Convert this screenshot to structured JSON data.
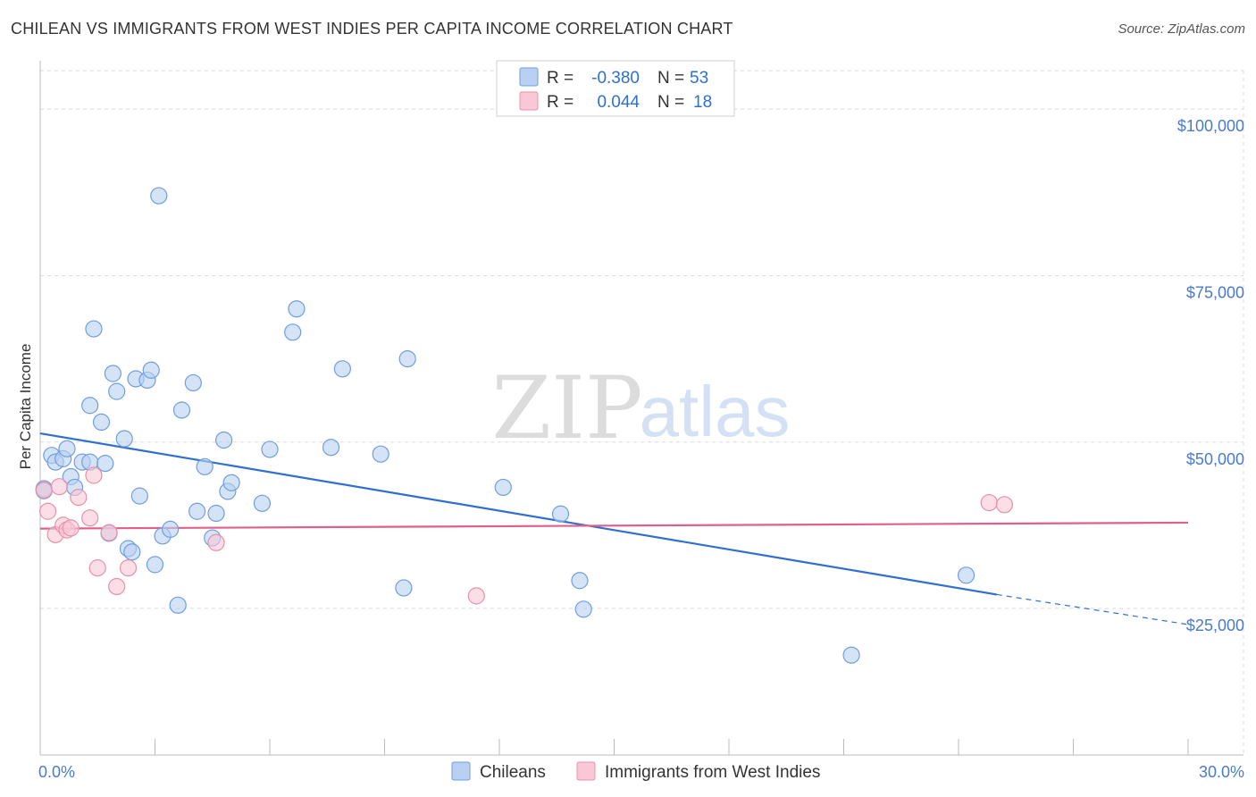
{
  "title": "CHILEAN VS IMMIGRANTS FROM WEST INDIES PER CAPITA INCOME CORRELATION CHART",
  "source": "Source: ZipAtlas.com",
  "watermark": {
    "zip": "ZIP",
    "atlas": "atlas"
  },
  "colors": {
    "blue_fill": "#b9d0f2",
    "blue_stroke": "#6f9ee0",
    "blue_line": "#2f6fd0",
    "pink_fill": "#f8c8d6",
    "pink_stroke": "#e890ab",
    "pink_line": "#e0608a",
    "grid": "#d9d9d9",
    "tick_text": "#4a7bc8"
  },
  "legend": {
    "r_label": "R =",
    "n_label": "N =",
    "rows": [
      {
        "series": "Chileans",
        "r": "-0.380",
        "n": "53"
      },
      {
        "series": "Immigrants from West Indies",
        "r": "0.044",
        "n": "18"
      }
    ]
  },
  "chart_data": {
    "type": "scatter",
    "ylabel": "Per Capita Income",
    "xlim": [
      0,
      30
    ],
    "ylim": [
      3000,
      107000
    ],
    "x_ticks": [
      "0.0%",
      "30.0%"
    ],
    "y_ticks": [
      {
        "value": 25000,
        "label": "$25,000"
      },
      {
        "value": 50000,
        "label": "$50,000"
      },
      {
        "value": 75000,
        "label": "$75,000"
      },
      {
        "value": 100000,
        "label": "$100,000"
      }
    ],
    "series": [
      {
        "name": "Chileans",
        "points": [
          [
            0.1,
            43000
          ],
          [
            0.3,
            48000
          ],
          [
            0.4,
            47000
          ],
          [
            0.6,
            47500
          ],
          [
            0.7,
            49000
          ],
          [
            0.8,
            44800
          ],
          [
            0.9,
            43200
          ],
          [
            1.1,
            47000
          ],
          [
            1.3,
            47000
          ],
          [
            1.3,
            55500
          ],
          [
            1.4,
            67000
          ],
          [
            1.6,
            53000
          ],
          [
            1.7,
            46800
          ],
          [
            1.8,
            36300
          ],
          [
            1.9,
            60300
          ],
          [
            2.0,
            57600
          ],
          [
            2.2,
            50500
          ],
          [
            2.3,
            34000
          ],
          [
            2.4,
            33500
          ],
          [
            2.5,
            59500
          ],
          [
            2.6,
            41900
          ],
          [
            2.8,
            59300
          ],
          [
            2.9,
            60800
          ],
          [
            3.0,
            31600
          ],
          [
            3.1,
            87000
          ],
          [
            3.2,
            35900
          ],
          [
            3.4,
            36900
          ],
          [
            3.6,
            25500
          ],
          [
            3.7,
            54800
          ],
          [
            4.0,
            58900
          ],
          [
            4.1,
            39600
          ],
          [
            4.3,
            46300
          ],
          [
            4.5,
            35600
          ],
          [
            4.6,
            39300
          ],
          [
            4.8,
            50300
          ],
          [
            4.9,
            42600
          ],
          [
            5.0,
            43900
          ],
          [
            5.8,
            40800
          ],
          [
            6.0,
            48900
          ],
          [
            6.6,
            66500
          ],
          [
            6.7,
            70000
          ],
          [
            7.6,
            49200
          ],
          [
            7.9,
            61000
          ],
          [
            8.9,
            48200
          ],
          [
            9.6,
            62500
          ],
          [
            9.5,
            28100
          ],
          [
            12.1,
            43200
          ],
          [
            13.6,
            39200
          ],
          [
            14.1,
            29200
          ],
          [
            14.2,
            24900
          ],
          [
            21.2,
            18000
          ],
          [
            24.2,
            30000
          ],
          [
            0.1,
            42700
          ]
        ]
      },
      {
        "name": "Immigrants from West Indies",
        "points": [
          [
            0.1,
            42800
          ],
          [
            0.2,
            39600
          ],
          [
            0.4,
            36100
          ],
          [
            0.5,
            43300
          ],
          [
            0.6,
            37500
          ],
          [
            0.7,
            36800
          ],
          [
            0.8,
            37100
          ],
          [
            1.0,
            41700
          ],
          [
            1.3,
            38600
          ],
          [
            1.4,
            45000
          ],
          [
            1.5,
            31100
          ],
          [
            1.8,
            36400
          ],
          [
            2.0,
            28300
          ],
          [
            2.3,
            31100
          ],
          [
            4.6,
            34900
          ],
          [
            11.4,
            26900
          ],
          [
            24.8,
            40900
          ],
          [
            25.2,
            40600
          ]
        ]
      }
    ],
    "trendlines": [
      {
        "series": "Chileans",
        "x1": 0,
        "y1": 51300,
        "x2": 25,
        "y2": 27100,
        "dash_to_x": 30,
        "dash_to_y": 22600
      },
      {
        "series": "Immigrants from West Indies",
        "x1": 0,
        "y1": 37000,
        "x2": 30,
        "y2": 37900
      }
    ]
  }
}
